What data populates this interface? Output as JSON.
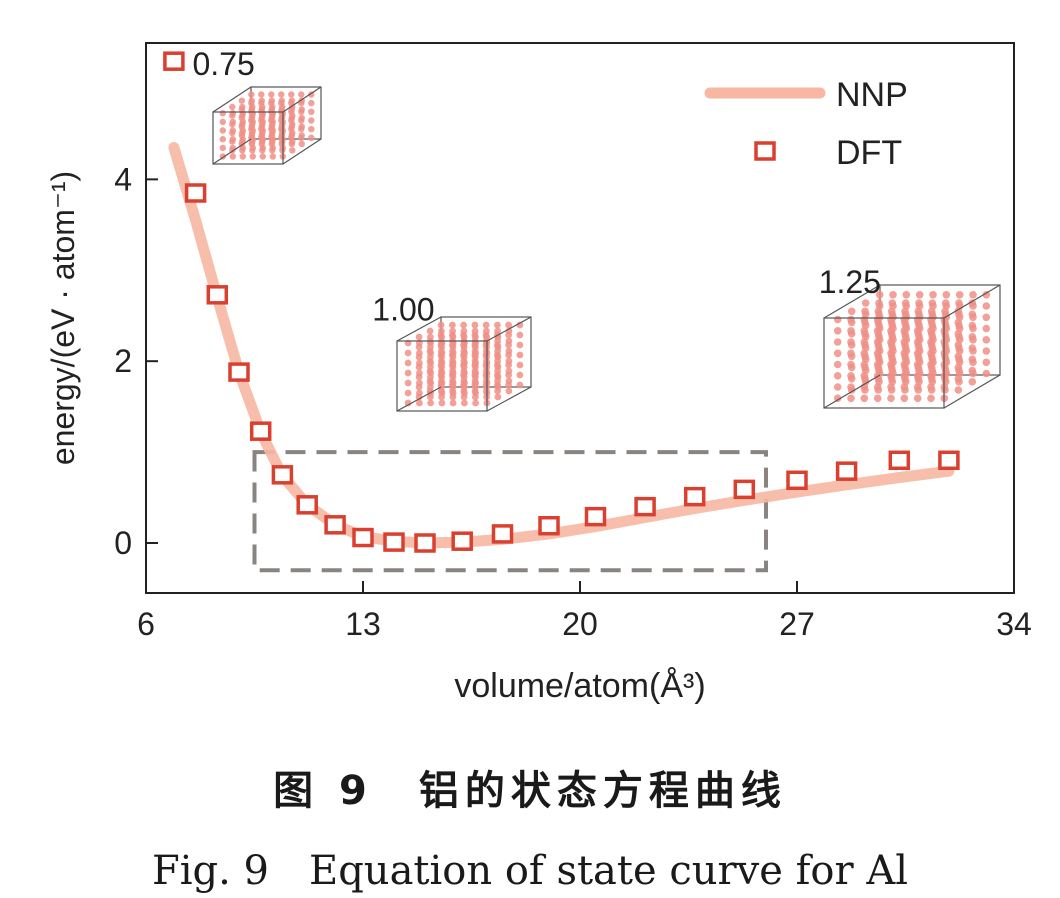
{
  "chart_data": {
    "type": "line",
    "xlabel": "volume/atom(Å³)",
    "ylabel": "energy/(eV · atom⁻¹)",
    "xlim": [
      6,
      34
    ],
    "ylim": [
      -0.55,
      5.5
    ],
    "xticks": [
      "6",
      "13",
      "20",
      "27",
      "34"
    ],
    "yticks": [
      "0",
      "2",
      "4"
    ],
    "grid": false,
    "legend_position": "top-right",
    "series": [
      {
        "name": "NNP",
        "kind": "line",
        "color": "#f7b7a3",
        "x": [
          6.9,
          7.6,
          8.3,
          9.0,
          9.7,
          10.4,
          11.2,
          12.1,
          13.0,
          14.0,
          15.0,
          16.2,
          17.5,
          19.0,
          20.5,
          22.1,
          23.7,
          25.3,
          27.0,
          28.6,
          30.3,
          31.9
        ],
        "y": [
          4.35,
          3.55,
          2.7,
          1.88,
          1.22,
          0.74,
          0.42,
          0.2,
          0.07,
          0.02,
          0.0,
          0.01,
          0.04,
          0.1,
          0.18,
          0.28,
          0.38,
          0.47,
          0.56,
          0.64,
          0.72,
          0.79
        ]
      },
      {
        "name": "DFT",
        "kind": "marker",
        "color": "#d9402f",
        "x": [
          6.9,
          7.6,
          8.3,
          9.0,
          9.7,
          10.4,
          11.2,
          12.1,
          13.0,
          14.0,
          15.0,
          16.2,
          17.5,
          19.0,
          20.5,
          22.1,
          23.7,
          25.3,
          27.0,
          28.6,
          30.3,
          31.9
        ],
        "y": [
          5.3,
          3.85,
          2.73,
          1.88,
          1.23,
          0.75,
          0.42,
          0.2,
          0.06,
          0.01,
          0.0,
          0.02,
          0.1,
          0.19,
          0.29,
          0.4,
          0.51,
          0.59,
          0.69,
          0.79,
          0.91,
          0.91
        ]
      }
    ],
    "annotations": [
      {
        "text": "0.75",
        "x": 7.5,
        "y": 5.15
      },
      {
        "text": "1.00",
        "x": 13.3,
        "y": 2.45
      },
      {
        "text": "1.25",
        "x": 27.7,
        "y": 2.75
      }
    ],
    "highlight_box": {
      "x0": 9.5,
      "x1": 26.0,
      "y0": -0.3,
      "y1": 1.0
    }
  },
  "caption": {
    "zh": "图 9　铝的状态方程曲线",
    "en": "Fig. 9　Equation of state curve for Al"
  }
}
